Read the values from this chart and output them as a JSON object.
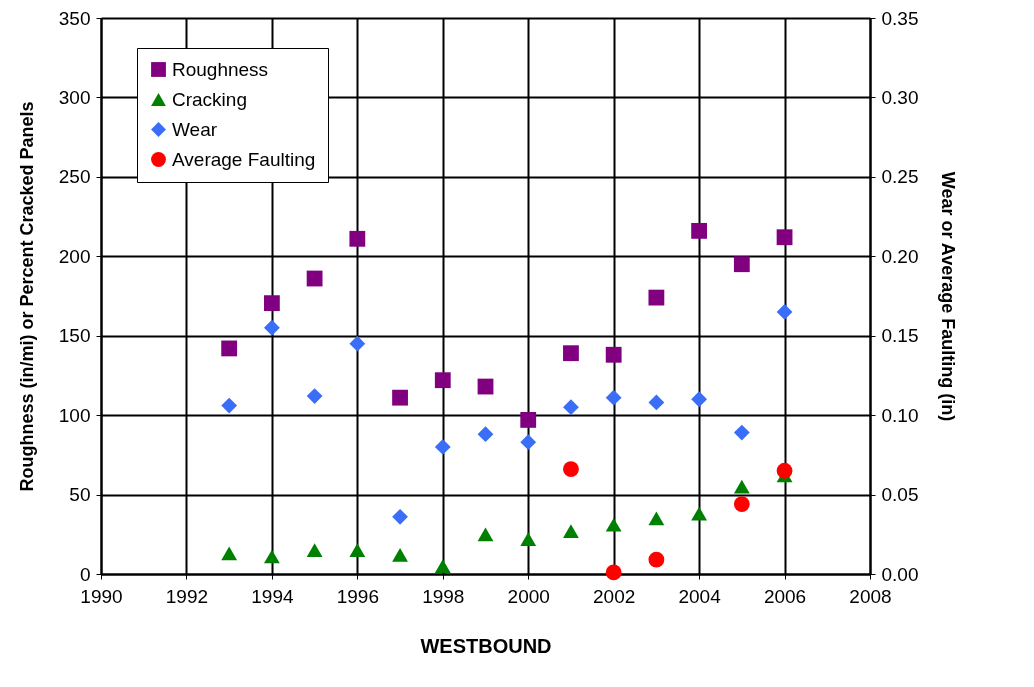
{
  "chart_data": {
    "type": "scatter",
    "xlabel": "WESTBOUND",
    "ylabel": "Roughness (in/mi) or Percent Cracked Panels",
    "y2label": "Wear or Average Faulting (in)",
    "x": [
      1993,
      1994,
      1995,
      1996,
      1997,
      1998,
      1999,
      2000,
      2001,
      2002,
      2003,
      2004,
      2005,
      2006
    ],
    "series": [
      {
        "name": "Roughness",
        "color": "#800080",
        "marker": "square",
        "values": [
          142,
          170.5,
          186,
          211,
          111,
          122,
          118,
          97,
          139,
          138,
          174,
          216,
          195,
          212
        ]
      },
      {
        "name": "Cracking",
        "color": "#008000",
        "marker": "triangle",
        "values": [
          13,
          11,
          15,
          15,
          12,
          5,
          25,
          22,
          27,
          31,
          35,
          38,
          55,
          62
        ]
      },
      {
        "name": "Wear",
        "color": "#3a6ef7",
        "marker": "diamond",
        "axis": "y2",
        "values": [
          0.106,
          0.155,
          0.112,
          0.145,
          0.036,
          0.08,
          0.088,
          0.083,
          0.105,
          0.111,
          0.108,
          0.11,
          0.089,
          0.165
        ]
      },
      {
        "name": "Average Faulting",
        "color": "#ff0000",
        "marker": "circle",
        "axis": "y2",
        "values": [
          null,
          null,
          null,
          null,
          null,
          null,
          null,
          null,
          0.066,
          0.001,
          0.009,
          null,
          0.044,
          0.065
        ]
      }
    ],
    "xlim": [
      1990,
      2008
    ],
    "xticks": [
      1990,
      1992,
      1994,
      1996,
      1998,
      2000,
      2002,
      2004,
      2006,
      2008
    ],
    "ylim": [
      0,
      350
    ],
    "yticks": [
      0,
      50,
      100,
      150,
      200,
      250,
      300,
      350
    ],
    "y2lim": [
      0,
      0.35
    ],
    "y2ticks": [
      {
        "value": 0,
        "label": "0.00"
      },
      {
        "value": 0.05,
        "label": "0.05"
      },
      {
        "value": 0.1,
        "label": "0.10"
      },
      {
        "value": 0.15,
        "label": "0.15"
      },
      {
        "value": 0.2,
        "label": "0.20"
      },
      {
        "value": 0.25,
        "label": "0.25"
      },
      {
        "value": 0.3,
        "label": "0.30"
      },
      {
        "value": 0.35,
        "label": "0.35"
      }
    ],
    "grid": true,
    "legend": "top left"
  }
}
